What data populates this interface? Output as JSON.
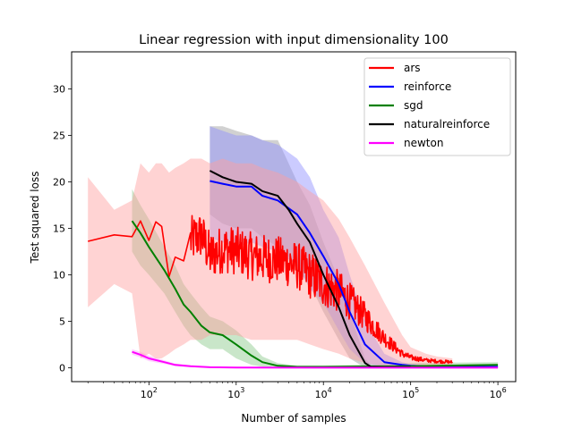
{
  "chart_data": {
    "type": "line",
    "title": "Linear regression with input dimensionality 100",
    "xlabel": "Number of samples",
    "ylabel": "Test squared loss",
    "xscale": "log",
    "xlim": [
      13,
      1600000
    ],
    "ylim": [
      -1.5,
      34
    ],
    "xticks": [
      {
        "value": 100,
        "base": "10",
        "exp": "2"
      },
      {
        "value": 1000,
        "base": "10",
        "exp": "3"
      },
      {
        "value": 10000,
        "base": "10",
        "exp": "4"
      },
      {
        "value": 100000,
        "base": "10",
        "exp": "5"
      },
      {
        "value": 1000000,
        "base": "10",
        "exp": "6"
      }
    ],
    "yticks": [
      {
        "value": 0,
        "label": "0"
      },
      {
        "value": 5,
        "label": "5"
      },
      {
        "value": 10,
        "label": "10"
      },
      {
        "value": 15,
        "label": "15"
      },
      {
        "value": 20,
        "label": "20"
      },
      {
        "value": 25,
        "label": "25"
      },
      {
        "value": 30,
        "label": "30"
      }
    ],
    "grid": false,
    "legend_position": "top-right",
    "series": [
      {
        "name": "ars",
        "color": "#ff0000",
        "noisy": true,
        "x": [
          20,
          40,
          64,
          80,
          100,
          120,
          140,
          170,
          200,
          250,
          300,
          400,
          500,
          700,
          1000,
          1500,
          2000,
          3000,
          5000,
          7000,
          10000,
          15000,
          20000,
          30000,
          50000,
          80000,
          100000,
          150000,
          200000,
          300000
        ],
        "y": [
          13.6,
          14.3,
          14.1,
          15.8,
          13.7,
          15.7,
          15.2,
          9.8,
          11.9,
          11.5,
          13.7,
          14.3,
          12.0,
          12.8,
          12.6,
          12.0,
          11.8,
          11.6,
          11.0,
          10.0,
          9.0,
          8.2,
          7.2,
          5.5,
          3.2,
          1.5,
          1.1,
          0.8,
          0.7,
          0.6
        ],
        "upper": [
          20.5,
          17.0,
          18.0,
          22.0,
          21.0,
          22.0,
          22.0,
          21.0,
          21.5,
          22.0,
          22.5,
          22.5,
          22.0,
          22.5,
          22.0,
          22.0,
          21.5,
          21.0,
          20.0,
          19.0,
          18.0,
          16.0,
          14.0,
          11.0,
          7.0,
          3.5,
          2.2,
          1.5,
          1.2,
          1.0
        ],
        "lower": [
          6.5,
          9.0,
          8.0,
          1.0,
          1.5,
          1.0,
          1.0,
          1.5,
          2.0,
          2.5,
          3.0,
          3.0,
          3.5,
          3.5,
          3.5,
          3.0,
          3.0,
          3.0,
          3.0,
          2.5,
          2.0,
          1.5,
          1.0,
          0.5,
          0.1,
          0.0,
          0.0,
          0.0,
          0.0,
          0.0
        ],
        "band_color": "#ff9e9e"
      },
      {
        "name": "reinforce",
        "color": "#0000ff",
        "noisy": false,
        "x": [
          500,
          700,
          1000,
          1500,
          2000,
          3000,
          5000,
          7000,
          10000,
          15000,
          20000,
          30000,
          50000,
          80000,
          100000,
          200000,
          400000,
          1000000
        ],
        "y": [
          20.1,
          19.8,
          19.5,
          19.5,
          18.5,
          18.0,
          16.5,
          14.5,
          12.0,
          9.0,
          6.0,
          2.5,
          0.6,
          0.3,
          0.2,
          0.1,
          0.1,
          0.1
        ],
        "upper": [
          26.0,
          25.5,
          25.0,
          25.0,
          24.5,
          24.0,
          22.5,
          20.5,
          17.0,
          14.0,
          10.0,
          5.0,
          1.5,
          0.6,
          0.4,
          0.2,
          0.2,
          0.2
        ],
        "lower": [
          14.0,
          13.5,
          13.0,
          13.5,
          13.0,
          12.5,
          11.0,
          8.5,
          7.0,
          4.0,
          2.0,
          0.5,
          0.0,
          0.0,
          0.0,
          0.0,
          0.0,
          0.0
        ],
        "band_color": "#8c8cff"
      },
      {
        "name": "sgd",
        "color": "#008000",
        "noisy": false,
        "x": [
          64,
          80,
          100,
          150,
          200,
          250,
          300,
          400,
          500,
          700,
          1000,
          1500,
          2000,
          3000,
          5000,
          10000,
          100000,
          1000000
        ],
        "y": [
          15.8,
          14.5,
          13.0,
          10.5,
          8.5,
          6.8,
          6.0,
          4.5,
          3.8,
          3.5,
          2.5,
          1.3,
          0.6,
          0.2,
          0.1,
          0.1,
          0.15,
          0.3
        ],
        "upper": [
          19.2,
          17.5,
          16.0,
          13.0,
          11.0,
          9.0,
          8.0,
          6.5,
          5.5,
          5.0,
          4.0,
          2.5,
          1.2,
          0.5,
          0.2,
          0.2,
          0.5,
          0.6
        ],
        "lower": [
          12.5,
          11.0,
          10.0,
          8.0,
          6.0,
          4.5,
          3.5,
          2.5,
          2.0,
          2.0,
          1.0,
          0.3,
          0.1,
          0.0,
          0.0,
          0.0,
          0.0,
          0.0
        ],
        "band_color": "#88c888"
      },
      {
        "name": "naturalreinforce",
        "color": "#000000",
        "noisy": false,
        "x": [
          500,
          700,
          1000,
          1500,
          2000,
          3000,
          4000,
          5000,
          7000,
          10000,
          15000,
          20000,
          30000,
          35000,
          50000,
          100000
        ],
        "y": [
          21.2,
          20.5,
          20.0,
          19.8,
          19.0,
          18.5,
          17.0,
          15.5,
          13.5,
          10.0,
          6.5,
          3.5,
          0.5,
          0.1,
          0.05,
          0.05
        ],
        "upper": [
          26.0,
          26.0,
          25.5,
          25.0,
          24.5,
          24.5,
          22.0,
          20.0,
          17.5,
          13.5,
          9.5,
          6.0,
          1.0,
          0.3,
          0.1,
          0.1
        ],
        "lower": [
          16.5,
          15.5,
          15.0,
          15.0,
          14.0,
          13.0,
          12.0,
          10.5,
          9.0,
          6.0,
          3.0,
          1.0,
          0.0,
          0.0,
          0.0,
          0.0
        ],
        "band_color": "#999999"
      },
      {
        "name": "newton",
        "color": "#ff00ff",
        "noisy": false,
        "x": [
          64,
          80,
          100,
          150,
          200,
          300,
          500,
          1000,
          10000,
          100000,
          1000000
        ],
        "y": [
          1.7,
          1.4,
          1.0,
          0.6,
          0.3,
          0.15,
          0.05,
          0.02,
          0.0,
          0.0,
          0.0
        ],
        "upper": [
          2.0,
          1.7,
          1.3,
          0.8,
          0.45,
          0.25,
          0.1,
          0.05,
          0.02,
          0.02,
          0.02
        ],
        "lower": [
          1.4,
          1.1,
          0.7,
          0.4,
          0.15,
          0.05,
          0.0,
          0.0,
          0.0,
          0.0,
          0.0
        ],
        "band_color": "#ff99ff"
      }
    ]
  }
}
